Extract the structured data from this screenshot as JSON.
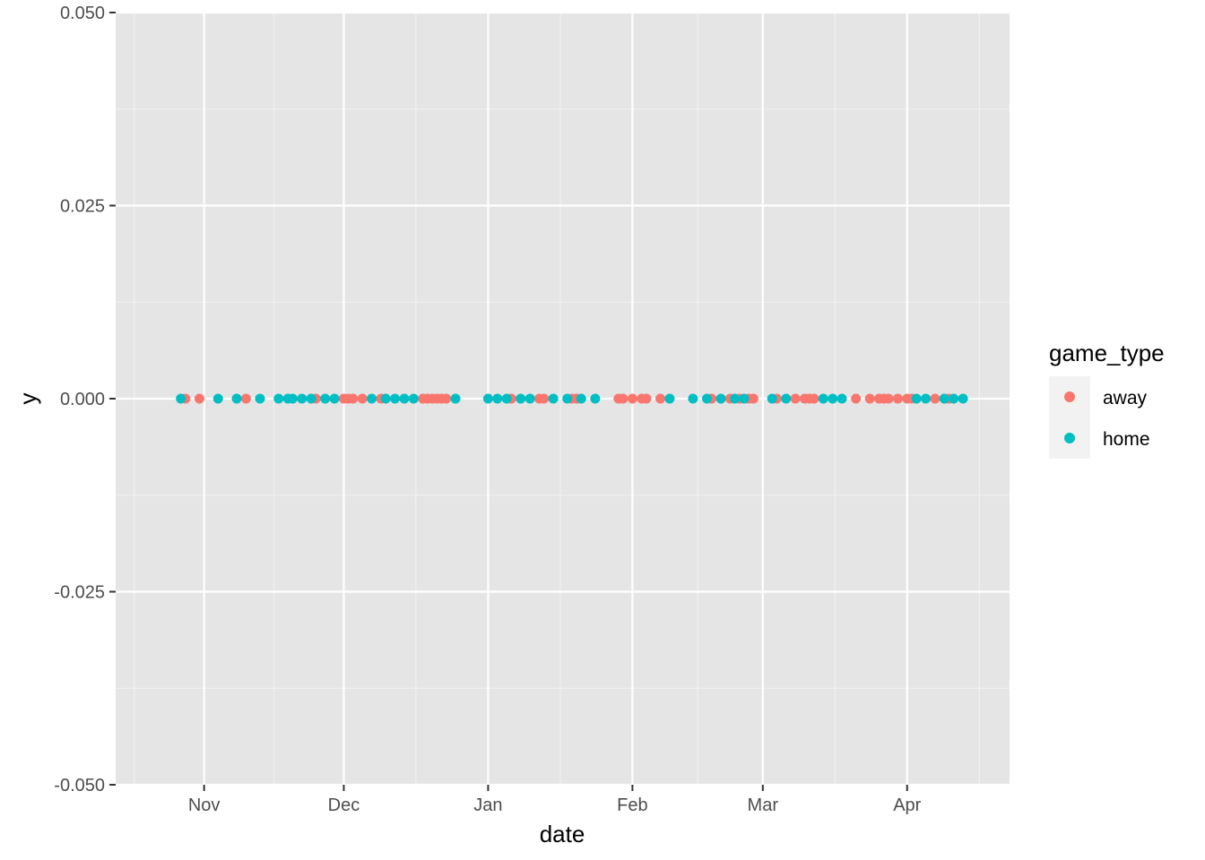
{
  "chart_data": {
    "type": "scatter",
    "title": "",
    "xlabel": "date",
    "ylabel": "y",
    "xlim": [
      "2017-10-13",
      "2018-04-23"
    ],
    "ylim": [
      -0.05,
      0.05
    ],
    "x_ticks": [
      {
        "date": "2017-11-01",
        "label": "Nov"
      },
      {
        "date": "2017-12-01",
        "label": "Dec"
      },
      {
        "date": "2018-01-01",
        "label": "Jan"
      },
      {
        "date": "2018-02-01",
        "label": "Feb"
      },
      {
        "date": "2018-03-01",
        "label": "Mar"
      },
      {
        "date": "2018-04-01",
        "label": "Apr"
      }
    ],
    "y_ticks": [
      {
        "value": 0.05,
        "label": "0.050"
      },
      {
        "value": 0.025,
        "label": "0.025"
      },
      {
        "value": 0,
        "label": "0.000"
      },
      {
        "value": -0.025,
        "label": "-0.025"
      },
      {
        "value": -0.05,
        "label": "-0.050"
      }
    ],
    "grid": true,
    "legend": {
      "title": "game_type",
      "position": "right"
    },
    "series": [
      {
        "name": "away",
        "color": "#F8766D",
        "points": [
          {
            "x": "2017-10-28",
            "y": 0
          },
          {
            "x": "2017-10-31",
            "y": 0
          },
          {
            "x": "2017-11-10",
            "y": 0
          },
          {
            "x": "2017-11-25",
            "y": 0
          },
          {
            "x": "2017-12-01",
            "y": 0
          },
          {
            "x": "2017-12-02",
            "y": 0
          },
          {
            "x": "2017-12-03",
            "y": 0
          },
          {
            "x": "2017-12-05",
            "y": 0
          },
          {
            "x": "2017-12-09",
            "y": 0
          },
          {
            "x": "2017-12-18",
            "y": 0
          },
          {
            "x": "2017-12-19",
            "y": 0
          },
          {
            "x": "2017-12-20",
            "y": 0
          },
          {
            "x": "2017-12-21",
            "y": 0
          },
          {
            "x": "2017-12-22",
            "y": 0
          },
          {
            "x": "2017-12-23",
            "y": 0
          },
          {
            "x": "2018-01-06",
            "y": 0
          },
          {
            "x": "2018-01-12",
            "y": 0
          },
          {
            "x": "2018-01-13",
            "y": 0
          },
          {
            "x": "2018-01-19",
            "y": 0
          },
          {
            "x": "2018-01-20",
            "y": 0
          },
          {
            "x": "2018-01-29",
            "y": 0
          },
          {
            "x": "2018-01-30",
            "y": 0
          },
          {
            "x": "2018-02-01",
            "y": 0
          },
          {
            "x": "2018-02-03",
            "y": 0
          },
          {
            "x": "2018-02-04",
            "y": 0
          },
          {
            "x": "2018-02-07",
            "y": 0
          },
          {
            "x": "2018-02-18",
            "y": 0
          },
          {
            "x": "2018-02-22",
            "y": 0
          },
          {
            "x": "2018-02-24",
            "y": 0
          },
          {
            "x": "2018-02-26",
            "y": 0
          },
          {
            "x": "2018-02-27",
            "y": 0
          },
          {
            "x": "2018-03-04",
            "y": 0
          },
          {
            "x": "2018-03-08",
            "y": 0
          },
          {
            "x": "2018-03-10",
            "y": 0
          },
          {
            "x": "2018-03-11",
            "y": 0
          },
          {
            "x": "2018-03-12",
            "y": 0
          },
          {
            "x": "2018-03-21",
            "y": 0
          },
          {
            "x": "2018-03-24",
            "y": 0
          },
          {
            "x": "2018-03-26",
            "y": 0
          },
          {
            "x": "2018-03-27",
            "y": 0
          },
          {
            "x": "2018-03-28",
            "y": 0
          },
          {
            "x": "2018-03-30",
            "y": 0
          },
          {
            "x": "2018-04-01",
            "y": 0
          },
          {
            "x": "2018-04-02",
            "y": 0
          },
          {
            "x": "2018-04-07",
            "y": 0
          },
          {
            "x": "2018-04-09",
            "y": 0
          },
          {
            "x": "2018-04-10",
            "y": 0
          }
        ]
      },
      {
        "name": "home",
        "color": "#00BFC4",
        "points": [
          {
            "x": "2017-10-27",
            "y": 0
          },
          {
            "x": "2017-11-04",
            "y": 0
          },
          {
            "x": "2017-11-08",
            "y": 0
          },
          {
            "x": "2017-11-13",
            "y": 0
          },
          {
            "x": "2017-11-17",
            "y": 0
          },
          {
            "x": "2017-11-19",
            "y": 0
          },
          {
            "x": "2017-11-20",
            "y": 0
          },
          {
            "x": "2017-11-22",
            "y": 0
          },
          {
            "x": "2017-11-24",
            "y": 0
          },
          {
            "x": "2017-11-27",
            "y": 0
          },
          {
            "x": "2017-11-29",
            "y": 0
          },
          {
            "x": "2017-12-07",
            "y": 0
          },
          {
            "x": "2017-12-10",
            "y": 0
          },
          {
            "x": "2017-12-12",
            "y": 0
          },
          {
            "x": "2017-12-14",
            "y": 0
          },
          {
            "x": "2017-12-16",
            "y": 0
          },
          {
            "x": "2017-12-25",
            "y": 0
          },
          {
            "x": "2018-01-01",
            "y": 0
          },
          {
            "x": "2018-01-03",
            "y": 0
          },
          {
            "x": "2018-01-05",
            "y": 0
          },
          {
            "x": "2018-01-08",
            "y": 0
          },
          {
            "x": "2018-01-10",
            "y": 0
          },
          {
            "x": "2018-01-15",
            "y": 0
          },
          {
            "x": "2018-01-18",
            "y": 0
          },
          {
            "x": "2018-01-21",
            "y": 0
          },
          {
            "x": "2018-01-24",
            "y": 0
          },
          {
            "x": "2018-02-09",
            "y": 0
          },
          {
            "x": "2018-02-14",
            "y": 0
          },
          {
            "x": "2018-02-17",
            "y": 0
          },
          {
            "x": "2018-02-20",
            "y": 0
          },
          {
            "x": "2018-02-23",
            "y": 0
          },
          {
            "x": "2018-02-25",
            "y": 0
          },
          {
            "x": "2018-03-03",
            "y": 0
          },
          {
            "x": "2018-03-06",
            "y": 0
          },
          {
            "x": "2018-03-14",
            "y": 0
          },
          {
            "x": "2018-03-16",
            "y": 0
          },
          {
            "x": "2018-03-18",
            "y": 0
          },
          {
            "x": "2018-04-03",
            "y": 0
          },
          {
            "x": "2018-04-05",
            "y": 0
          },
          {
            "x": "2018-04-09",
            "y": 0
          },
          {
            "x": "2018-04-11",
            "y": 0
          },
          {
            "x": "2018-04-13",
            "y": 0
          }
        ]
      }
    ]
  }
}
